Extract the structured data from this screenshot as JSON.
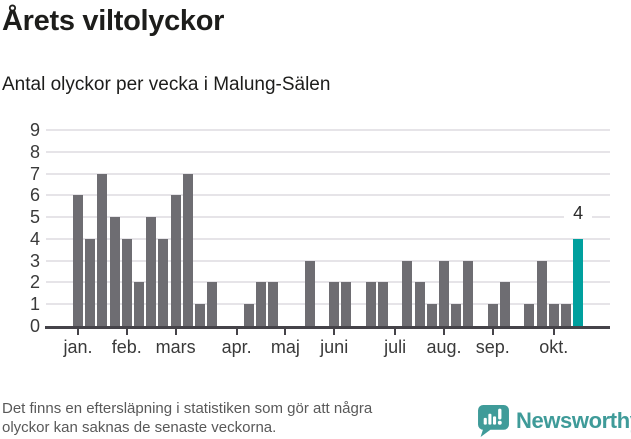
{
  "title": "Årets viltolyckor",
  "subtitle": "Antal olyckor per vecka i Malung-Sälen",
  "footer": {
    "note_line1": "Det finns en eftersläpning i statistiken som gör att några",
    "note_line2": "olyckor kan saknas de senaste veckorna.",
    "brand": "Newsworthy",
    "brand_color": "#3f9b99"
  },
  "chart_data": {
    "type": "bar",
    "title": "Årets viltolyckor",
    "subtitle": "Antal olyckor per vecka i Malung-Sälen",
    "xlabel": "",
    "ylabel": "",
    "x_unit": "vecka (week of year)",
    "weeks": [
      1,
      2,
      3,
      4,
      5,
      6,
      7,
      8,
      9,
      10,
      11,
      12,
      13,
      14,
      15,
      16,
      17,
      18,
      19,
      20,
      21,
      22,
      23,
      24,
      25,
      26,
      27,
      28,
      29,
      30,
      31,
      32,
      33,
      34,
      35,
      36,
      37,
      38,
      39,
      40,
      41,
      42
    ],
    "values": [
      6,
      4,
      7,
      5,
      4,
      2,
      5,
      4,
      6,
      7,
      1,
      2,
      0,
      0,
      1,
      2,
      2,
      0,
      0,
      3,
      0,
      2,
      2,
      0,
      2,
      2,
      0,
      3,
      2,
      1,
      3,
      1,
      3,
      0,
      1,
      2,
      0,
      1,
      3,
      1,
      1,
      4
    ],
    "ylim": [
      0,
      9
    ],
    "yticks": [
      0,
      1,
      2,
      3,
      4,
      5,
      6,
      7,
      8,
      9
    ],
    "grid": true,
    "legend": false,
    "month_ticks": [
      {
        "label": "jan.",
        "week": 1
      },
      {
        "label": "feb.",
        "week": 5
      },
      {
        "label": "mars",
        "week": 9
      },
      {
        "label": "apr.",
        "week": 14
      },
      {
        "label": "maj",
        "week": 18
      },
      {
        "label": "juni",
        "week": 22
      },
      {
        "label": "juli",
        "week": 27
      },
      {
        "label": "aug.",
        "week": 31
      },
      {
        "label": "sep.",
        "week": 35
      },
      {
        "label": "okt.",
        "week": 40
      }
    ],
    "highlight": {
      "index": 41,
      "label": "4"
    },
    "colors": {
      "bar": "#6e6d72",
      "highlight": "#00a09e",
      "gridline": "#e6e4e8",
      "axis": "#454349",
      "label": "#3a3a3a"
    }
  }
}
